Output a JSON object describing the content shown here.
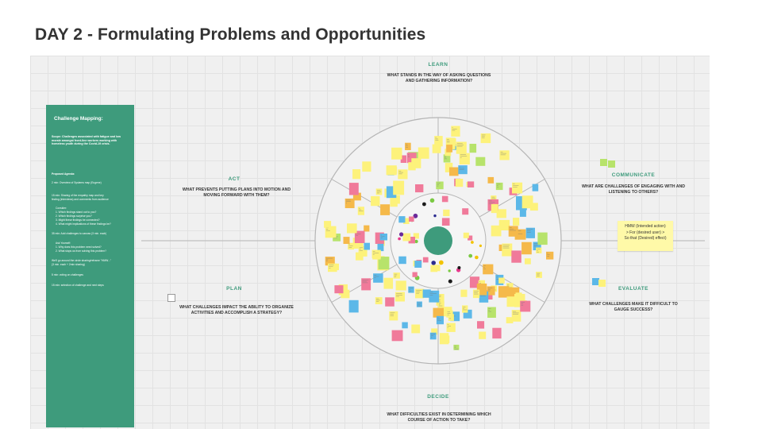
{
  "slide": {
    "title": "DAY 2 - Formulating Problems and Opportunities"
  },
  "panel": {
    "title": "Challenge Mapping:",
    "scope": "Scope: Challenges associated with fatigue and low morale amongst front-line workers working with homeless youth during the Covid-19 crisis.",
    "agenda_title": "Proposed Agenda:",
    "items": [
      "2 min: Overview of Systems map (Eugene)",
      "15 min: Sharing of the empathy map and key",
      "finding (interviews) and comments from audience",
      "Consider:",
      "1. Which findings stand out to you?",
      "2. Which findings surprise you?",
      "3. Might these findings be connected?",
      "4. What might implications of these findings be?",
      "35 min: Add challenges to canvas (3 min. each)",
      "Ask Yourself:",
      "1. Why does this problem need solved?",
      "2. What stops us from solving this problem?",
      "We'll go around the circle sharing/reframe \"HMW...\"",
      "(3 min. each + 2min sharing)",
      "5 min: voting on challenges",
      "15 min: selection of challenge and next steps"
    ]
  },
  "zones": {
    "learn": {
      "name": "LEARN",
      "question": "WHAT STANDS IN THE WAY OF ASKING QUESTIONS AND GATHERING INFORMATION?"
    },
    "act": {
      "name": "ACT",
      "question": "WHAT PREVENTS PUTTING PLANS INTO MOTION AND MOVING FORWARD WITH THEM?"
    },
    "communicate": {
      "name": "COMMUNICATE",
      "question": "WHAT ARE CHALLENGES OF ENGAGING WITH AND LISTENING TO OTHERS?"
    },
    "plan": {
      "name": "PLAN",
      "question": "WHAT CHALLENGES IMPACT THE ABILITY TO ORGANIZE ACTIVITIES AND ACCOMPLISH A STRATEGY?"
    },
    "evaluate": {
      "name": "EVALUATE",
      "question": "WHAT CHALLENGES MAKE IT DIFFICULT TO GAUGE SUCCESS?"
    },
    "decide": {
      "name": "DECIDE",
      "question": "WHAT DIFFICULTIES EXIST IN DETERMINING WHICH COURSE OF ACTION TO TAKE?"
    }
  },
  "hmw_note": {
    "line1": "HMW (Intended action)",
    "line2": "> For (desired user) >",
    "line3": "So that (Desired) effect)"
  },
  "colors": {
    "panel_green": "#3e9b7c",
    "wheel_line": "#b5b5b5",
    "center_green": "#3e9b7c",
    "sticky_yellow": "#fdf27b",
    "sticky_green": "#b7e36b",
    "sticky_blue": "#5cb8e8",
    "sticky_pink": "#f07a9a",
    "sticky_orange": "#f5b94a"
  }
}
